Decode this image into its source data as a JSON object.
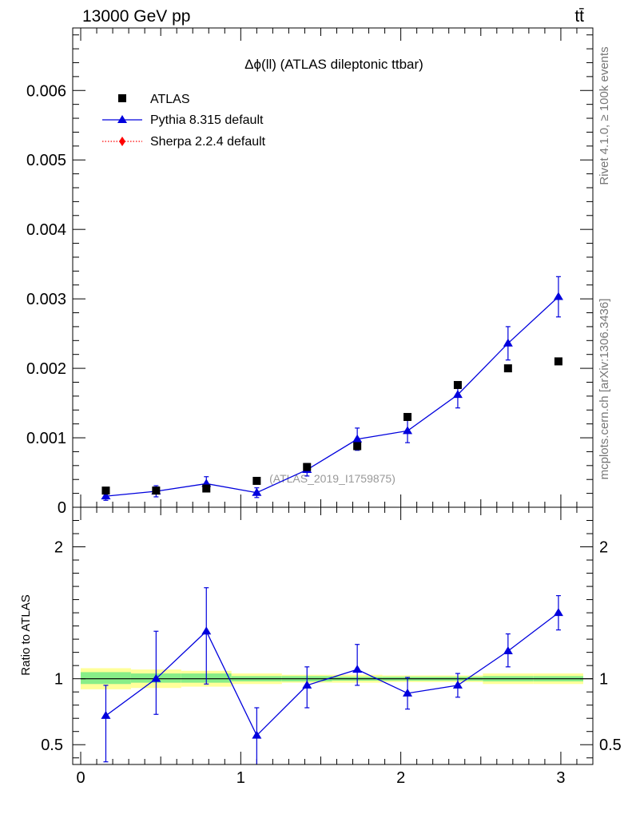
{
  "header": {
    "energy_label": "13000 GeV pp",
    "process_label": "tt̄"
  },
  "side_labels": {
    "rivet": "Rivet 4.1.0, ≥ 100k events",
    "mcplots": "mcplots.cern.ch [arXiv:1306.3436]"
  },
  "chart_data": {
    "type": "scatter",
    "title": "Δϕ(ll) (ATLAS dileptonic ttbar)",
    "watermark": "(ATLAS_2019_I1759875)",
    "xlabel": "",
    "ylabel": "",
    "xlim": [
      -0.05,
      3.2
    ],
    "ylim": [
      0,
      0.0069
    ],
    "x_ticks": [
      0,
      1,
      2,
      3
    ],
    "x_tick_labels": [
      "0",
      "1",
      "2",
      "3"
    ],
    "y_ticks": [
      0,
      0.001,
      0.002,
      0.003,
      0.004,
      0.005,
      0.006
    ],
    "y_tick_labels": [
      "0",
      "0.001",
      "0.002",
      "0.003",
      "0.004",
      "0.005",
      "0.006"
    ],
    "x": [
      0.157,
      0.471,
      0.785,
      1.1,
      1.414,
      1.728,
      2.042,
      2.356,
      2.67,
      2.985
    ],
    "series": [
      {
        "name": "ATLAS",
        "style": "marker-square",
        "color": "#000000",
        "values": [
          0.00024,
          0.00024,
          0.00027,
          0.00038,
          0.00058,
          0.00088,
          0.0013,
          0.00176,
          0.002,
          0.0021
        ]
      },
      {
        "name": "Pythia 8.315 default",
        "style": "line-triangle",
        "color": "#0000dd",
        "values": [
          0.00016,
          0.00023,
          0.00034,
          0.00021,
          0.00054,
          0.00098,
          0.0011,
          0.00162,
          0.00236,
          0.00303
        ],
        "err_up": [
          6e-05,
          8e-05,
          0.0001,
          7e-05,
          9e-05,
          0.00016,
          0.00017,
          0.00019,
          0.00024,
          0.00029
        ],
        "err_down": [
          6e-05,
          8e-05,
          0.0001,
          7e-05,
          9e-05,
          0.00016,
          0.00017,
          0.00019,
          0.00024,
          0.00029
        ]
      },
      {
        "name": "Sherpa 2.2.4 default",
        "style": "dotted-diamond",
        "color": "#ff0000",
        "values": []
      }
    ],
    "ratio": {
      "ylabel": "Ratio to ATLAS",
      "ylim": [
        0.35,
        2.3
      ],
      "y_ticks": [
        0.5,
        1,
        2
      ],
      "y_tick_labels": [
        "0.5",
        "1",
        "2"
      ],
      "reference": 1,
      "values": [
        0.72,
        1.0,
        1.36,
        0.57,
        0.95,
        1.07,
        0.89,
        0.95,
        1.21,
        1.5
      ],
      "err_up": [
        0.23,
        0.36,
        0.33,
        0.21,
        0.14,
        0.19,
        0.12,
        0.09,
        0.13,
        0.13
      ],
      "err_down": [
        0.35,
        0.27,
        0.4,
        0.22,
        0.17,
        0.12,
        0.12,
        0.09,
        0.12,
        0.13
      ],
      "band_edges": [
        0.0,
        0.314,
        0.628,
        0.942,
        1.257,
        1.571,
        1.885,
        2.199,
        2.513,
        2.827,
        3.14
      ],
      "band_inner": [
        [
          0.96,
          1.05
        ],
        [
          0.97,
          1.04
        ],
        [
          0.97,
          1.04
        ],
        [
          0.98,
          1.02
        ],
        [
          0.98,
          1.02
        ],
        [
          0.985,
          1.015
        ],
        [
          0.985,
          1.015
        ],
        [
          0.985,
          1.015
        ],
        [
          0.98,
          1.02
        ],
        [
          0.98,
          1.02
        ]
      ],
      "band_outer": [
        [
          0.92,
          1.08
        ],
        [
          0.93,
          1.07
        ],
        [
          0.94,
          1.06
        ],
        [
          0.96,
          1.04
        ],
        [
          0.97,
          1.03
        ],
        [
          0.97,
          1.03
        ],
        [
          0.975,
          1.025
        ],
        [
          0.975,
          1.025
        ],
        [
          0.96,
          1.04
        ],
        [
          0.96,
          1.04
        ]
      ],
      "band_colors": {
        "inner": "#88ee88",
        "outer": "#ffff99"
      }
    }
  }
}
